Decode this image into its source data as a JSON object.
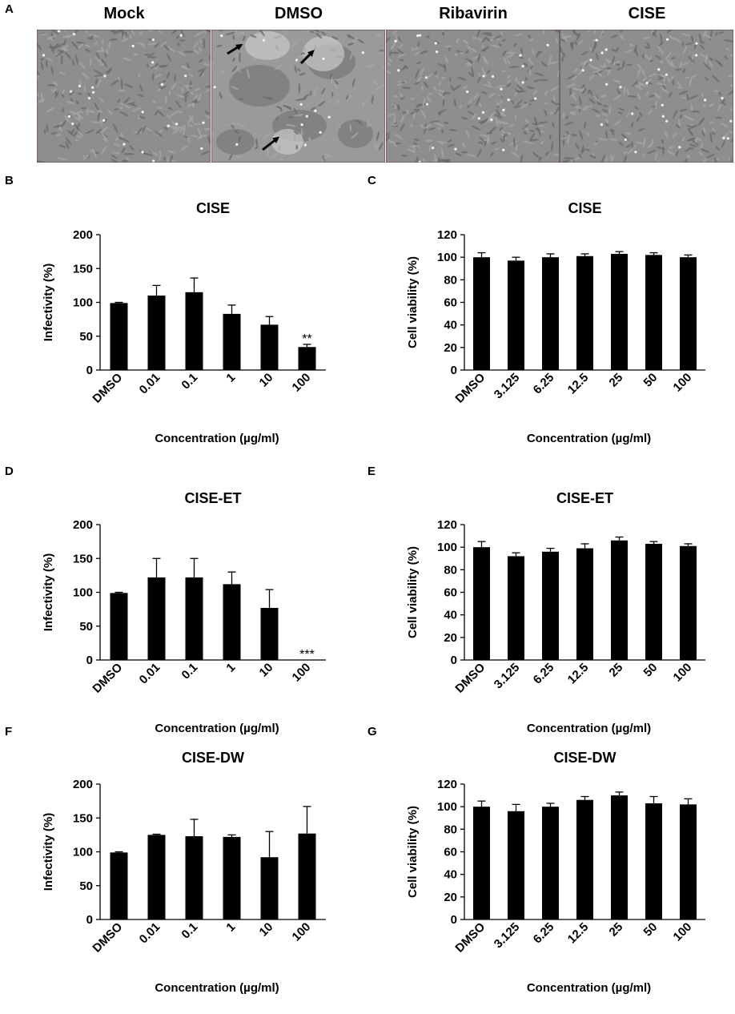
{
  "panel_letters": {
    "A": "A",
    "B": "B",
    "C": "C",
    "D": "D",
    "E": "E",
    "F": "F",
    "G": "G"
  },
  "micrographs": [
    {
      "label": "Mock"
    },
    {
      "label": "DMSO"
    },
    {
      "label": "Ribavirin"
    },
    {
      "label": "CISE"
    }
  ],
  "colors": {
    "bar": "#000000",
    "micrograph_base": "#8e8e8e",
    "micrograph_dmso": "#9a9a9a"
  },
  "chart_data": [
    {
      "panel": "B",
      "type": "bar",
      "title": "CISE",
      "xlabel": "Concentration (µg/ml)",
      "ylabel": "Infectivity (%)",
      "categories": [
        "DMSO",
        "0.01",
        "0.1",
        "1",
        "10",
        "100"
      ],
      "values": [
        99,
        110,
        115,
        83,
        67,
        34
      ],
      "errors": [
        1,
        15,
        21,
        13,
        12,
        4
      ],
      "annotations": [
        "",
        "",
        "",
        "",
        "",
        "**"
      ],
      "ylim": [
        0,
        200
      ],
      "yticks": [
        0,
        50,
        100,
        150,
        200
      ]
    },
    {
      "panel": "C",
      "type": "bar",
      "title": "CISE",
      "xlabel": "Concentration (µg/ml)",
      "ylabel": "Cell viability (%)",
      "categories": [
        "DMSO",
        "3.125",
        "6.25",
        "12.5",
        "25",
        "50",
        "100"
      ],
      "values": [
        100,
        97,
        100,
        101,
        103,
        102,
        100
      ],
      "errors": [
        4,
        3,
        3,
        2,
        2,
        2,
        2
      ],
      "annotations": [
        "",
        "",
        "",
        "",
        "",
        "",
        ""
      ],
      "ylim": [
        0,
        120
      ],
      "yticks": [
        0,
        20,
        40,
        60,
        80,
        100,
        120
      ]
    },
    {
      "panel": "D",
      "type": "bar",
      "title": "CISE-ET",
      "xlabel": "Concentration (µg/ml)",
      "ylabel": "Infectivity (%)",
      "categories": [
        "DMSO",
        "0.01",
        "0.1",
        "1",
        "10",
        "100"
      ],
      "values": [
        99,
        122,
        122,
        112,
        77,
        0
      ],
      "errors": [
        1,
        28,
        28,
        18,
        27,
        0
      ],
      "annotations": [
        "",
        "",
        "",
        "",
        "",
        "***"
      ],
      "ylim": [
        0,
        200
      ],
      "yticks": [
        0,
        50,
        100,
        150,
        200
      ]
    },
    {
      "panel": "E",
      "type": "bar",
      "title": "CISE-ET",
      "xlabel": "Concentration (µg/ml)",
      "ylabel": "Cell viability (%)",
      "categories": [
        "DMSO",
        "3.125",
        "6.25",
        "12.5",
        "25",
        "50",
        "100"
      ],
      "values": [
        100,
        92,
        96,
        99,
        106,
        103,
        101
      ],
      "errors": [
        5,
        3,
        3,
        4,
        3,
        2,
        2
      ],
      "annotations": [
        "",
        "",
        "",
        "",
        "",
        "",
        ""
      ],
      "ylim": [
        0,
        120
      ],
      "yticks": [
        0,
        20,
        40,
        60,
        80,
        100,
        120
      ]
    },
    {
      "panel": "F",
      "type": "bar",
      "title": "CISE-DW",
      "xlabel": "Concentration (µg/ml)",
      "ylabel": "Infectivity (%)",
      "categories": [
        "DMSO",
        "0.01",
        "0.1",
        "1",
        "10",
        "100"
      ],
      "values": [
        99,
        125,
        123,
        122,
        92,
        127
      ],
      "errors": [
        1,
        1,
        25,
        3,
        38,
        40
      ],
      "annotations": [
        "",
        "",
        "",
        "",
        "",
        ""
      ],
      "ylim": [
        0,
        200
      ],
      "yticks": [
        0,
        50,
        100,
        150,
        200
      ]
    },
    {
      "panel": "G",
      "type": "bar",
      "title": "CISE-DW",
      "xlabel": "Concentration (µg/ml)",
      "ylabel": "Cell viability (%)",
      "categories": [
        "DMSO",
        "3.125",
        "6.25",
        "12.5",
        "25",
        "50",
        "100"
      ],
      "values": [
        100,
        96,
        100,
        106,
        110,
        103,
        102
      ],
      "errors": [
        5,
        6,
        3,
        3,
        3,
        6,
        5
      ],
      "annotations": [
        "",
        "",
        "",
        "",
        "",
        "",
        ""
      ],
      "ylim": [
        0,
        120
      ],
      "yticks": [
        0,
        20,
        40,
        60,
        80,
        100,
        120
      ]
    }
  ]
}
